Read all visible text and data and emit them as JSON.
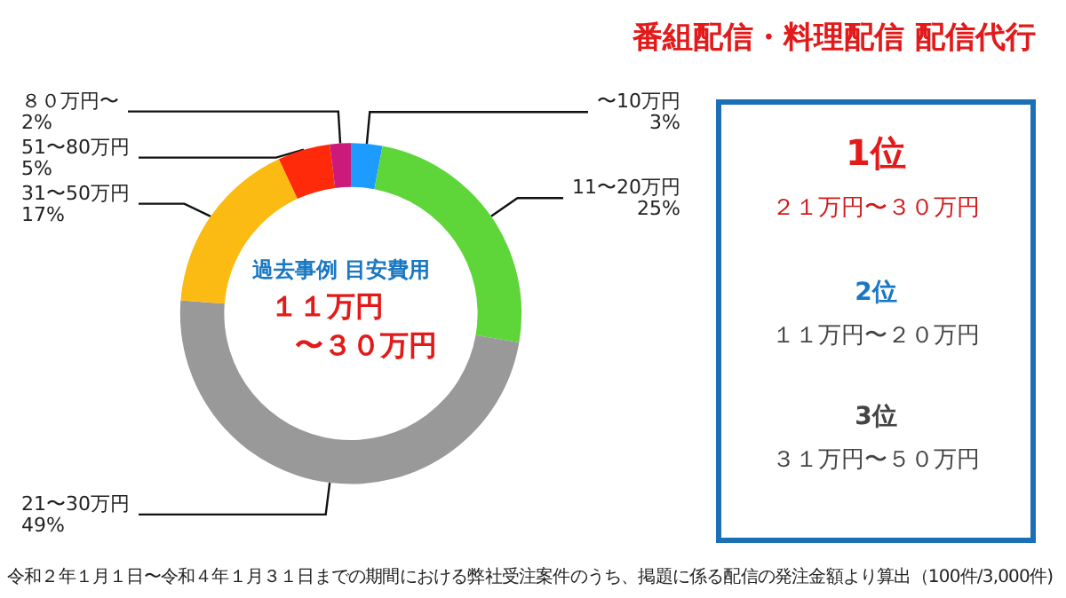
{
  "chart_data": {
    "type": "donut",
    "title": "番組配信・料理配信 配信代行",
    "categories": [
      "〜10万円",
      "11〜20万円",
      "21〜30万円",
      "31〜50万円",
      "51〜80万円",
      "８０万円〜"
    ],
    "values": [
      3,
      25,
      49,
      17,
      5,
      2
    ],
    "value_labels": [
      "3%",
      "25%",
      "49%",
      "17%",
      "5%",
      "2%"
    ],
    "colors": [
      "#1e9bff",
      "#5ed63a",
      "#999999",
      "#fbbb12",
      "#ff2a0a",
      "#cc1a7a"
    ],
    "legend": false,
    "annotations": [
      "過去事例 目安費用",
      "１１万円",
      "〜３０万円",
      "1位",
      "２１万円〜３０万円",
      "2位",
      "１１万円〜２０万円",
      "3位",
      "３１万円〜５０万円",
      "令和２年１月１日〜令和４年１月３１日までの期間における弊社受注案件のうち、掲題に係る配信の発注金額より算出（100件/3,000件)"
    ]
  }
}
